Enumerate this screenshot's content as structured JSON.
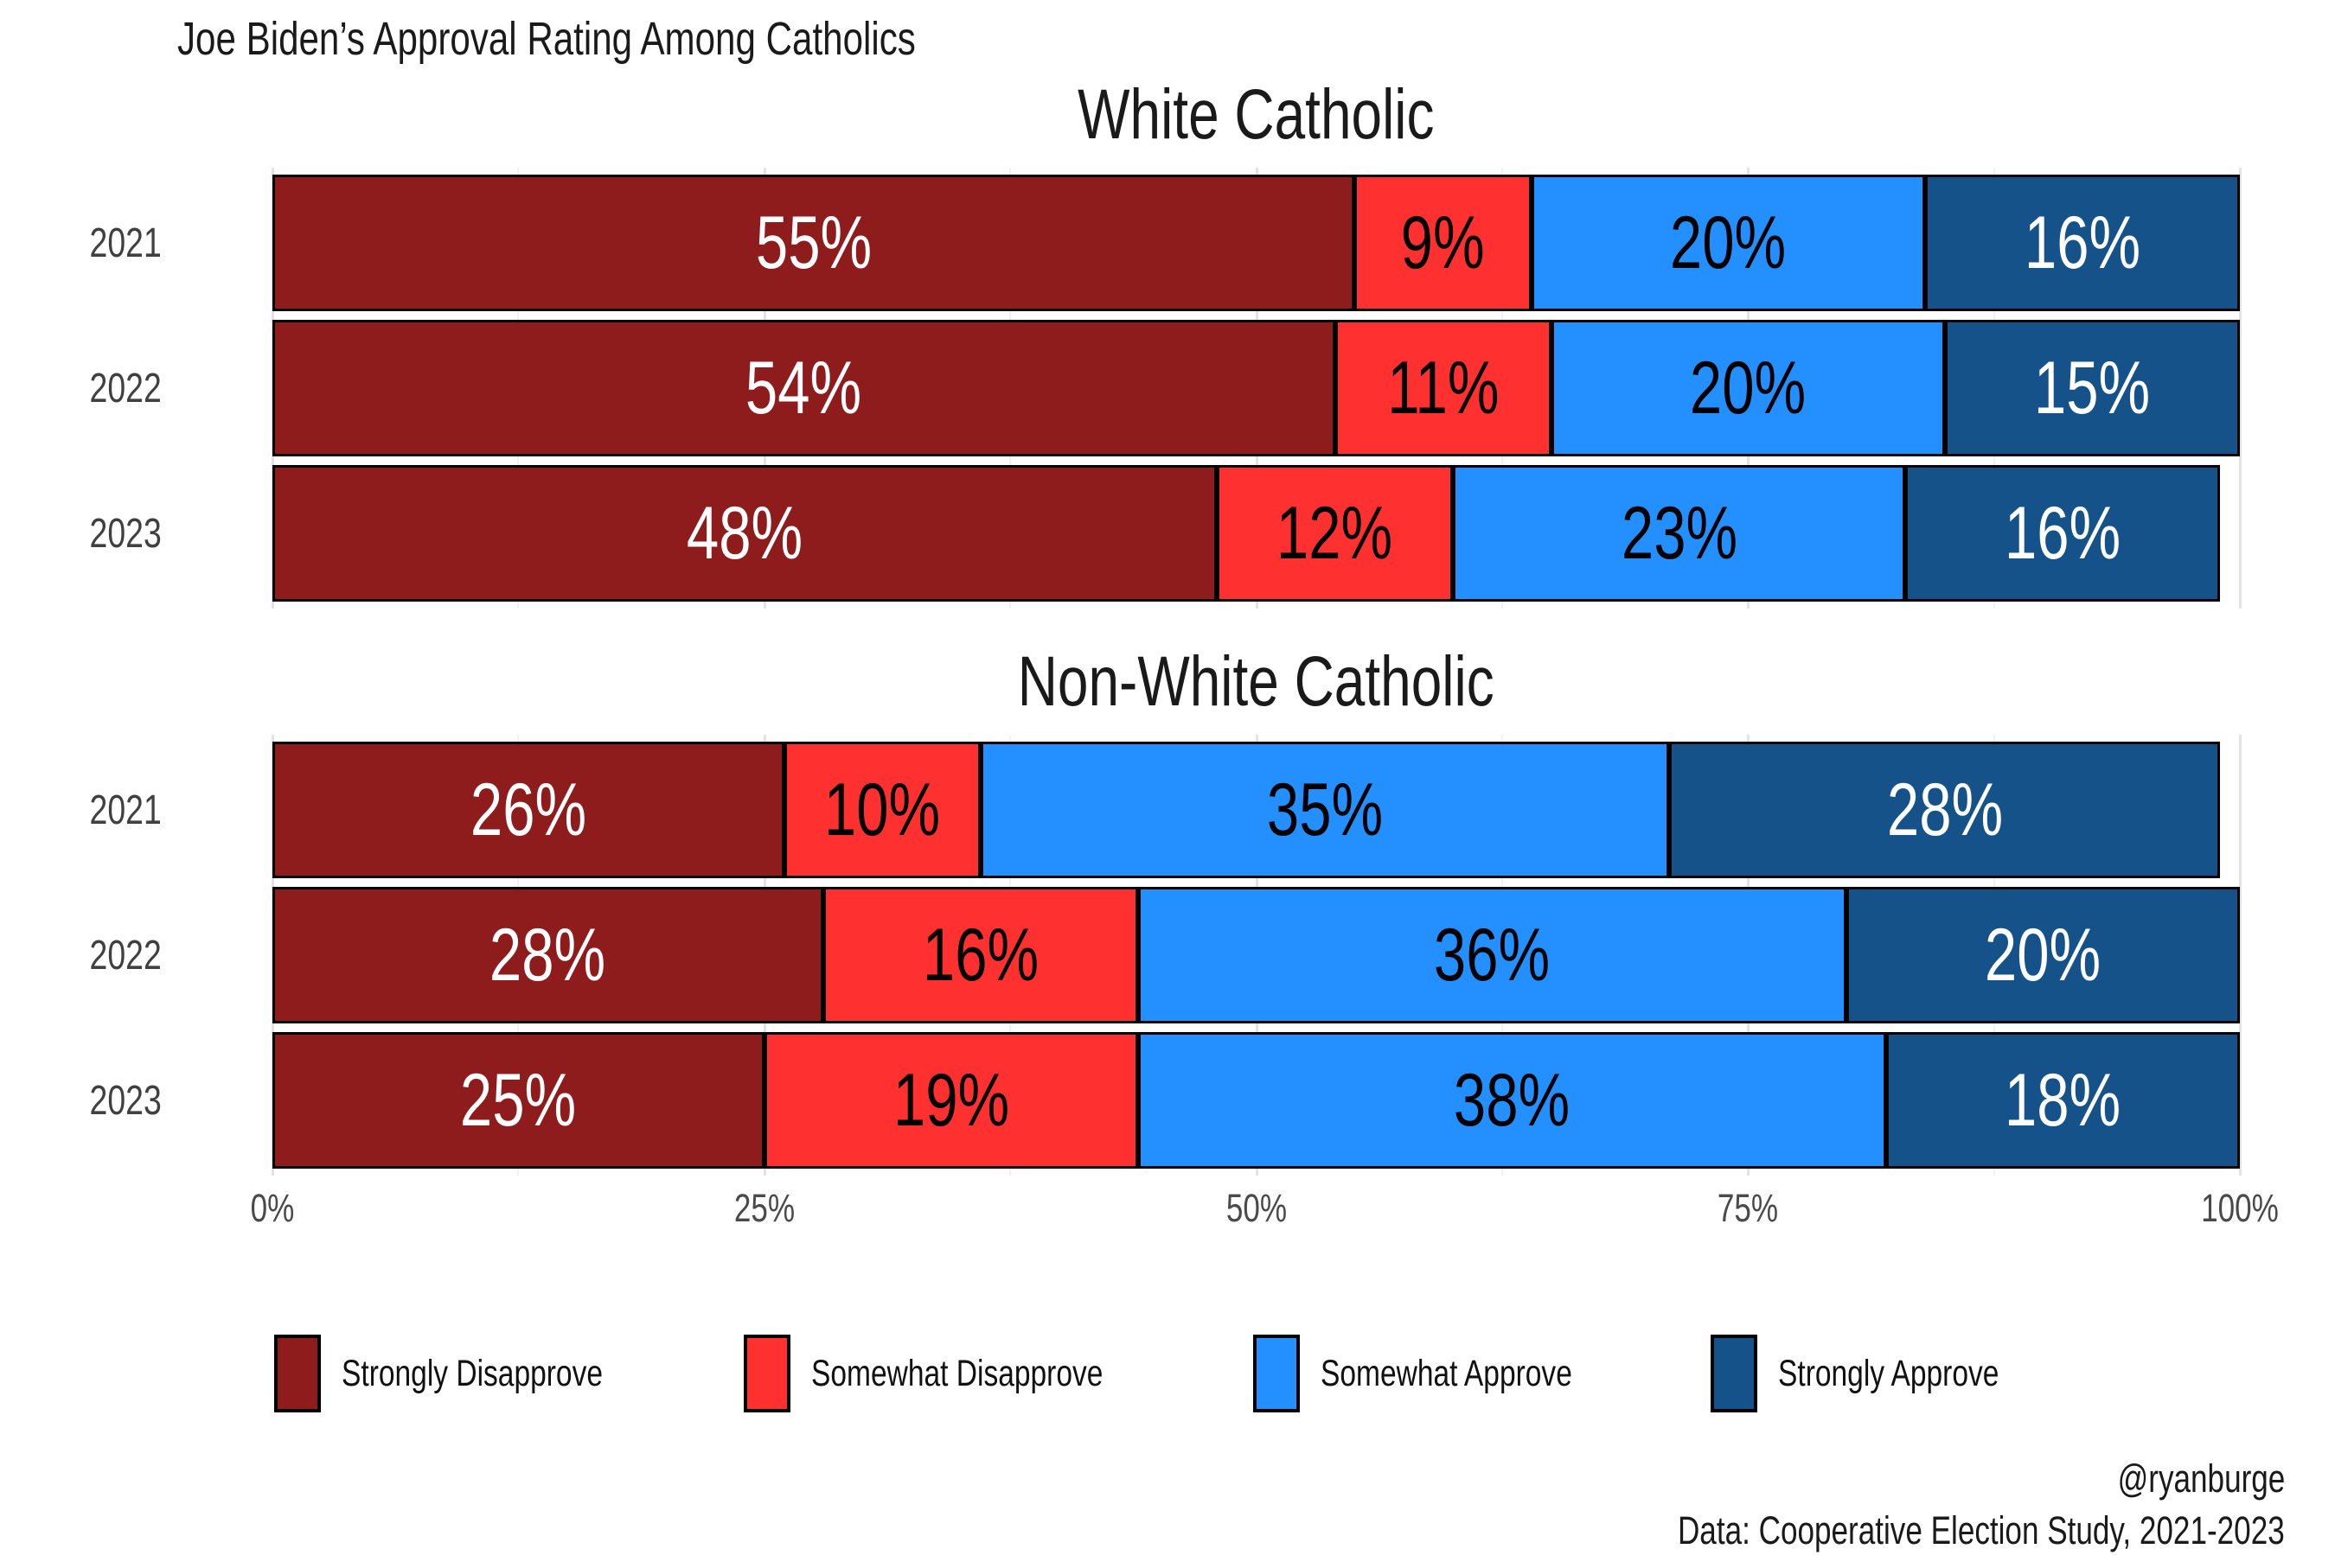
{
  "header": {
    "title": "Joe Biden’s Approval Rating Among Catholics"
  },
  "chart_data": {
    "type": "bar",
    "orientation": "horizontal",
    "stacked": true,
    "title": "Joe Biden’s Approval Rating Among Catholics",
    "series_names": [
      "Strongly Disapprove",
      "Somewhat Disapprove",
      "Somewhat Approve",
      "Strongly Approve"
    ],
    "series_colors": [
      "#8E1C1C",
      "#FF3030",
      "#2490FF",
      "#155289"
    ],
    "label_colors": [
      "#FFFFFF",
      "#000000",
      "#000000",
      "#FFFFFF"
    ],
    "xlim": [
      0,
      100
    ],
    "x_tick_labels": [
      "0%",
      "25%",
      "50%",
      "75%",
      "100%"
    ],
    "grid": "major 25% / minor 12.5% vertical",
    "legend_position": "bottom",
    "panels": [
      {
        "title": "White Catholic",
        "categories": [
          "2021",
          "2022",
          "2023"
        ],
        "series": [
          {
            "name": "Strongly Disapprove",
            "values": [
              55,
              54,
              48
            ]
          },
          {
            "name": "Somewhat Disapprove",
            "values": [
              9,
              11,
              12
            ]
          },
          {
            "name": "Somewhat Approve",
            "values": [
              20,
              20,
              23
            ]
          },
          {
            "name": "Strongly Approve",
            "values": [
              16,
              15,
              16
            ]
          }
        ]
      },
      {
        "title": "Non-White Catholic",
        "categories": [
          "2021",
          "2022",
          "2023"
        ],
        "series": [
          {
            "name": "Strongly Disapprove",
            "values": [
              26,
              28,
              25
            ]
          },
          {
            "name": "Somewhat Disapprove",
            "values": [
              10,
              16,
              19
            ]
          },
          {
            "name": "Somewhat Approve",
            "values": [
              35,
              36,
              38
            ]
          },
          {
            "name": "Strongly Approve",
            "values": [
              28,
              20,
              18
            ]
          }
        ]
      }
    ]
  },
  "axis": {
    "ticks": [
      {
        "label": "0%",
        "pos": 0
      },
      {
        "label": "25%",
        "pos": 25
      },
      {
        "label": "50%",
        "pos": 50
      },
      {
        "label": "75%",
        "pos": 75
      },
      {
        "label": "100%",
        "pos": 100
      }
    ]
  },
  "legend": {
    "items": [
      {
        "label": "Strongly Disapprove",
        "color": "#8E1C1C"
      },
      {
        "label": "Somewhat Disapprove",
        "color": "#FF3030"
      },
      {
        "label": "Somewhat Approve",
        "color": "#2490FF"
      },
      {
        "label": "Strongly Approve",
        "color": "#155289"
      }
    ]
  },
  "footer": {
    "handle": "@ryanburge",
    "source": "Data: Cooperative Election Study, 2021-2023"
  },
  "colors": {
    "background": "#FFFFFF",
    "bar_border": "#000000",
    "grid_major": "#E3E3E3",
    "grid_minor": "#F1F1F1",
    "axis_text": "#4A4A4A",
    "year_text": "#404040"
  }
}
